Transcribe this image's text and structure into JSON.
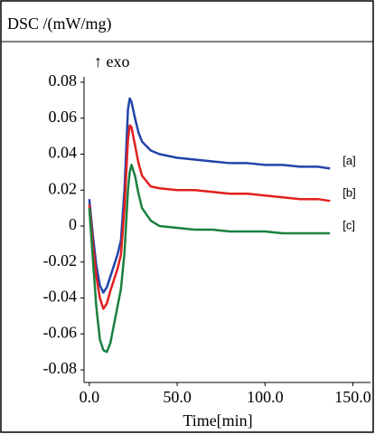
{
  "chart_data": {
    "type": "line",
    "title": "DSC /(mW/mg)",
    "annotation": "↑ exo",
    "xlabel": "Time[min]",
    "x": [
      0,
      2,
      4,
      6,
      8,
      10,
      12,
      14,
      16,
      18,
      20,
      22,
      23,
      24,
      26,
      28,
      30,
      35,
      40,
      50,
      60,
      70,
      80,
      90,
      100,
      110,
      120,
      130,
      137
    ],
    "series": [
      {
        "name": "[a]",
        "color": "#2244aa",
        "values": [
          0.015,
          -0.005,
          -0.022,
          -0.033,
          -0.037,
          -0.034,
          -0.028,
          -0.022,
          -0.016,
          -0.008,
          0.02,
          0.065,
          0.071,
          0.069,
          0.06,
          0.052,
          0.047,
          0.042,
          0.04,
          0.038,
          0.037,
          0.036,
          0.035,
          0.035,
          0.034,
          0.034,
          0.033,
          0.033,
          0.032
        ]
      },
      {
        "name": "[b]",
        "color": "#e02020",
        "values": [
          0.012,
          -0.01,
          -0.028,
          -0.04,
          -0.046,
          -0.043,
          -0.036,
          -0.03,
          -0.024,
          -0.016,
          0.01,
          0.048,
          0.056,
          0.055,
          0.045,
          0.035,
          0.028,
          0.022,
          0.021,
          0.02,
          0.02,
          0.019,
          0.018,
          0.018,
          0.017,
          0.016,
          0.015,
          0.015,
          0.014
        ]
      },
      {
        "name": "[c]",
        "color": "#1a8040",
        "values": [
          0.01,
          -0.018,
          -0.045,
          -0.063,
          -0.069,
          -0.07,
          -0.065,
          -0.055,
          -0.045,
          -0.035,
          -0.015,
          0.02,
          0.03,
          0.034,
          0.028,
          0.018,
          0.01,
          0.003,
          0.0,
          -0.001,
          -0.002,
          -0.002,
          -0.003,
          -0.003,
          -0.003,
          -0.004,
          -0.004,
          -0.004,
          -0.004
        ]
      }
    ],
    "xlim": [
      -3,
      160
    ],
    "xticks": [
      {
        "value": 0,
        "label": "0.0"
      },
      {
        "value": 50,
        "label": "50.0"
      },
      {
        "value": 100,
        "label": "100.0"
      },
      {
        "value": 150,
        "label": "150.0"
      }
    ],
    "ylim": [
      -0.087,
      0.083
    ],
    "yticks": [
      0.08,
      0.06,
      0.04,
      0.02,
      0,
      -0.02,
      -0.04,
      -0.06,
      -0.08
    ]
  }
}
